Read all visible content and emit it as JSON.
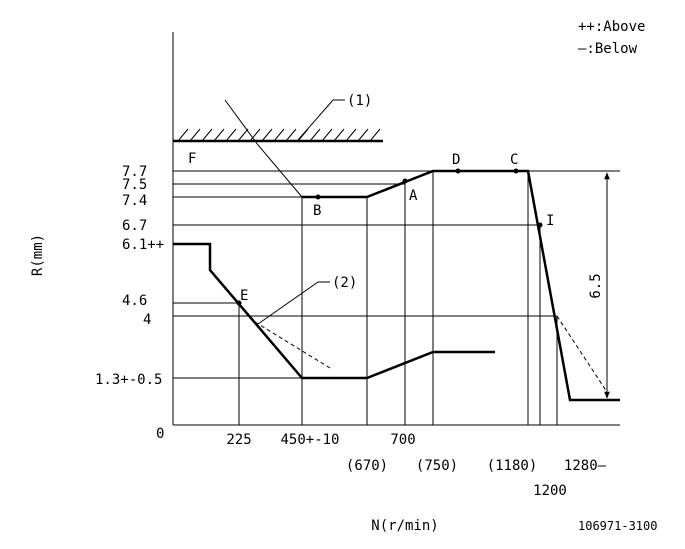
{
  "legend": {
    "above": "++:Above",
    "below": "—:Below"
  },
  "axes": {
    "y_title": "R(mm)",
    "x_title": "N(r/min)"
  },
  "y_labels": [
    "7.7",
    "7.5",
    "7.4",
    "6.7",
    "6.1++",
    "4.6",
    "4",
    "1.3+-0.5",
    "0"
  ],
  "x_labels": [
    "225",
    "450+-10",
    "700",
    "(670)",
    "(750)",
    "(1180)",
    "1200",
    "1280—"
  ],
  "points": [
    "F",
    "D",
    "C",
    "B",
    "A",
    "I",
    "E"
  ],
  "callouts": [
    "(1)",
    "(2)"
  ],
  "dimension": "6.5",
  "code": "106971-3100"
}
